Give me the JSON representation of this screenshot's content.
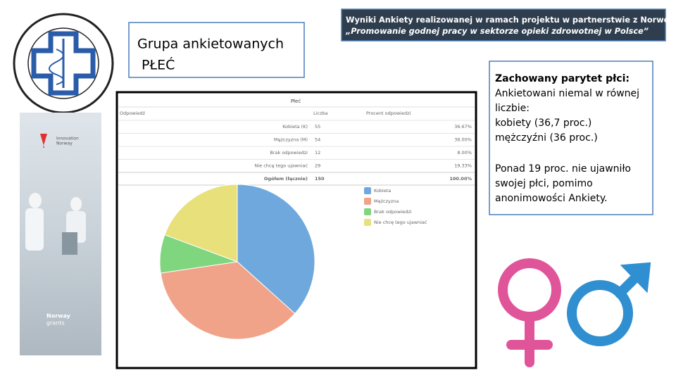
{
  "header": {
    "title_lines": [
      "Wyniki Ankiety realizowanej w ramach projektu w partnerstwie z Norwegią",
      "„Promowanie godnej pracy w sektorze opieki zdrowotnej w Polsce”"
    ]
  },
  "label_box": {
    "lines": [
      "Grupa ankietowanych",
      " PŁEĆ"
    ]
  },
  "side_image": {
    "brand_top": [
      "Innovation",
      "Norway"
    ],
    "brand_bottom": [
      "Norway",
      "grants"
    ]
  },
  "notes": {
    "lines": [
      "Zachowany parytet płci:",
      "Ankietowani niemal w równej",
      "liczbie:",
      "kobiety (36,7 proc.)",
      "mężczyźni (36 proc.)"
    ],
    "second_lines": [
      "Ponad 19 proc. nie ujawniło",
      "swojej płci, pomimo",
      "anonimowości Ankiety."
    ]
  },
  "chart_data": {
    "type": "pie",
    "title": "Płeć",
    "categories": [
      "Kobieta",
      "Mężczyzna",
      "Brak odpowiedzi",
      "Nie chcę tego ujawniać"
    ],
    "values": [
      55,
      54,
      12,
      29
    ],
    "colors": [
      "#6fa8dc",
      "#f0a388",
      "#7fd67f",
      "#e8e07a"
    ],
    "table": {
      "headers": [
        "Odpowiedź",
        "Liczba",
        "Procent odpowiedzi"
      ],
      "row_labels": [
        "Kobieta (K)",
        "Mężczyzna (M)",
        "Brak odpowiedzi",
        "Nie chcę tego ujawniać"
      ],
      "percent_labels": [
        "36.67%",
        "36.00%",
        "8.00%",
        "19.33%"
      ],
      "total": [
        "Ogółem (łącznie)",
        "150",
        "100.00%"
      ]
    }
  }
}
